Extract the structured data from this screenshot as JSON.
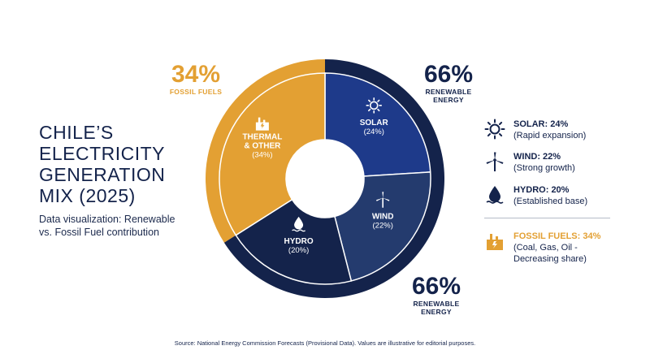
{
  "colors": {
    "navy": "#14234b",
    "royal_blue": "#1e3a8a",
    "mid_navy": "#243b6e",
    "gold": "#e3a033",
    "divider": "#b5bcc8"
  },
  "title": "CHILE’S ELECTRICITY GENERATION MIX (2025)",
  "subtitle": "Data visualization: Renewable vs. Fossil Fuel contribution",
  "callouts": {
    "fossil": {
      "pct": "34%",
      "label": "FOSSIL FUELS"
    },
    "renewable_top": {
      "pct": "66%",
      "label_line1": "RENEWABLE",
      "label_line2": "ENERGY"
    },
    "renewable_bottom": {
      "pct": "66%",
      "label_line1": "RENEWABLE",
      "label_line2": "ENERGY"
    }
  },
  "chart_data": {
    "type": "pie",
    "variant": "donut",
    "slices": [
      {
        "label_line1": "SOLAR",
        "label_line2": "",
        "value_label": "(24%)",
        "value": 24,
        "color": "#1e3a8a",
        "icon": "sun-icon",
        "group": "renewable"
      },
      {
        "label_line1": "WIND",
        "label_line2": "",
        "value_label": "(22%)",
        "value": 22,
        "color": "#243b6e",
        "icon": "wind-turbine-icon",
        "group": "renewable"
      },
      {
        "label_line1": "HYDRO",
        "label_line2": "",
        "value_label": "(20%)",
        "value": 20,
        "color": "#14234b",
        "icon": "water-drop-icon",
        "group": "renewable"
      },
      {
        "label_line1": "THERMAL",
        "label_line2": "& OTHER",
        "value_label": "(34%)",
        "value": 34,
        "color": "#e3a033",
        "icon": "power-plant-icon",
        "group": "fossil"
      }
    ],
    "groups": {
      "renewable": {
        "value": 66,
        "color": "#14234b"
      },
      "fossil": {
        "value": 34,
        "color": "#e3a033"
      }
    }
  },
  "legend": [
    {
      "name": "SOLAR: 24%",
      "desc": "(Rapid expansion)",
      "icon": "sun-icon",
      "color": "#14234b"
    },
    {
      "name": "WIND: 22%",
      "desc": "(Strong growth)",
      "icon": "wind-turbine-icon",
      "color": "#14234b"
    },
    {
      "name": "HYDRO: 20%",
      "desc": "(Established base)",
      "icon": "water-drop-icon",
      "color": "#14234b"
    },
    {
      "name": "FOSSIL FUELS: 34%",
      "desc": "(Coal, Gas, Oil -",
      "desc2": "Decreasing share)",
      "icon": "power-plant-icon",
      "color": "#e3a033"
    }
  ],
  "source": "Source: National Energy Commission Forecasts (Provisional Data). Values are illustrative for editorial purposes."
}
